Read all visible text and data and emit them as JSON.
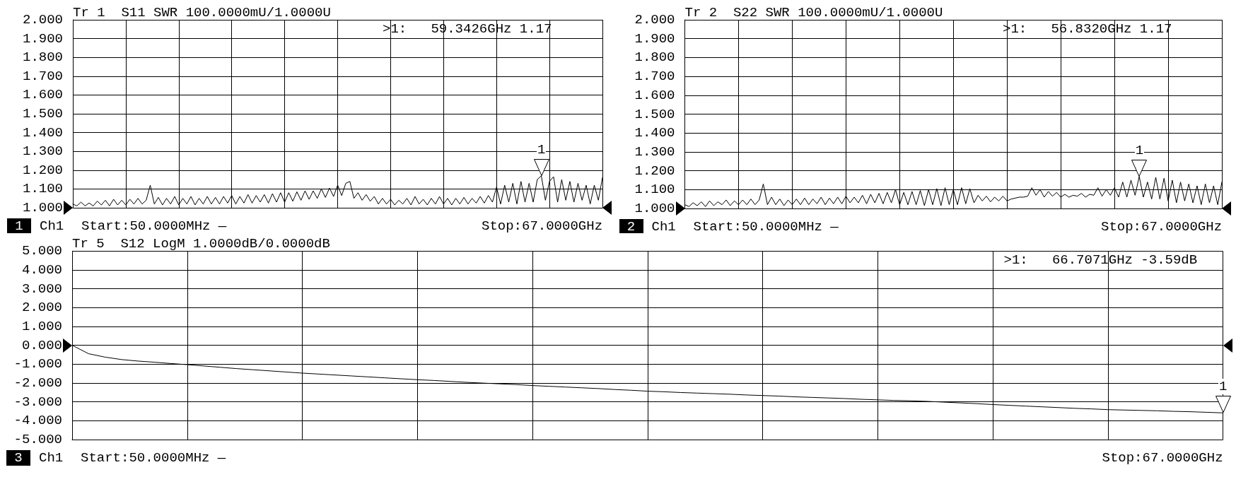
{
  "chart_data": [
    {
      "type": "line",
      "title": "Tr 1  S11 SWR 100.0000mU/1.0000U",
      "annotations": [
        "1",
        "Ch1",
        "Start:50.0000MHz —",
        "Stop:67.0000GHz",
        ">1:   59.3426GHz 1.17",
        {
          "text": "1",
          "y": 1.17
        }
      ],
      "categories": [
        null,
        null,
        null,
        null,
        null,
        null,
        null,
        null,
        null,
        null,
        null,
        null,
        null,
        null,
        null,
        null,
        null,
        null,
        null,
        null,
        null,
        null,
        null,
        null,
        null,
        null,
        null,
        null,
        null,
        null,
        null,
        null,
        null,
        null,
        null,
        null,
        null,
        null,
        null,
        null,
        null,
        null,
        null,
        null,
        null,
        null,
        null,
        null,
        null,
        null,
        null,
        null,
        null,
        null,
        null,
        null,
        null,
        null,
        null,
        null,
        null,
        null,
        null,
        null,
        null,
        null,
        null,
        null,
        null,
        null,
        null,
        null,
        null,
        null,
        null,
        null,
        null,
        null,
        null,
        null,
        null,
        null,
        null,
        null,
        null,
        null,
        null,
        null,
        null,
        null,
        null,
        null,
        null,
        null,
        null,
        null,
        null,
        null,
        null,
        null,
        null,
        null,
        null,
        null,
        null,
        null,
        null,
        null,
        null,
        null,
        null,
        null,
        null,
        null,
        null,
        null,
        null,
        null,
        null,
        null,
        null,
        null,
        null,
        null,
        null,
        null,
        null,
        null,
        null,
        null,
        null
      ],
      "values": [
        1.02,
        1.01,
        1.03,
        1.01,
        1.025,
        1.01,
        1.035,
        1.015,
        1.04,
        1.01,
        1.045,
        1.015,
        1.04,
        1.015,
        1.045,
        1.02,
        1.05,
        1.02,
        1.04,
        1.12,
        1.02,
        1.055,
        1.015,
        1.05,
        1.02,
        1.06,
        1.015,
        1.05,
        1.02,
        1.06,
        1.015,
        1.05,
        1.02,
        1.06,
        1.02,
        1.055,
        1.02,
        1.06,
        1.025,
        1.065,
        1.02,
        1.06,
        1.025,
        1.07,
        1.025,
        1.065,
        1.03,
        1.07,
        1.025,
        1.075,
        1.03,
        1.08,
        1.03,
        1.08,
        1.035,
        1.085,
        1.04,
        1.09,
        1.045,
        1.09,
        1.05,
        1.1,
        1.055,
        1.105,
        1.06,
        1.12,
        1.065,
        1.13,
        1.14,
        1.05,
        1.08,
        1.04,
        1.07,
        1.035,
        1.06,
        1.02,
        1.05,
        1.02,
        1.045,
        1.015,
        1.04,
        1.02,
        1.05,
        1.015,
        1.06,
        1.02,
        1.045,
        1.015,
        1.05,
        1.02,
        1.06,
        1.02,
        1.05,
        1.015,
        1.05,
        1.02,
        1.055,
        1.02,
        1.05,
        1.025,
        1.06,
        1.025,
        1.065,
        1.03,
        1.11,
        1.02,
        1.12,
        1.03,
        1.13,
        1.02,
        1.14,
        1.03,
        1.13,
        1.03,
        1.15,
        1.17,
        1.04,
        1.14,
        1.165,
        1.03,
        1.15,
        1.04,
        1.14,
        1.03,
        1.13,
        1.04,
        1.12,
        1.02,
        1.12,
        1.04,
        1.16
      ],
      "color": "#000000",
      "ylim": [
        1,
        2
      ],
      "yticks": [
        {
          "value": 1,
          "label": "1.000"
        },
        {
          "value": 1.1,
          "label": "1.100"
        },
        {
          "value": 1.2,
          "label": "1.200"
        },
        {
          "value": 1.3,
          "label": "1.300"
        },
        {
          "value": 1.4,
          "label": "1.400"
        },
        {
          "value": 1.5,
          "label": "1.500"
        },
        {
          "value": 1.6,
          "label": "1.600"
        },
        {
          "value": 1.7,
          "label": "1.700"
        },
        {
          "value": 1.8,
          "label": "1.800"
        },
        {
          "value": 1.9,
          "label": "1.900"
        },
        {
          "value": 2,
          "label": "2.000"
        }
      ],
      "grid": true,
      "tick_labels": "y"
    },
    {
      "type": "line",
      "title": "Tr 2  S22 SWR 100.0000mU/1.0000U",
      "annotations": [
        "2",
        "Ch1",
        "Start:50.0000MHz —",
        "Stop:67.0000GHz",
        ">1:   56.8320GHz 1.17",
        {
          "text": "1",
          "y": 1.17
        }
      ],
      "categories": [
        null,
        null,
        null,
        null,
        null,
        null,
        null,
        null,
        null,
        null,
        null,
        null,
        null,
        null,
        null,
        null,
        null,
        null,
        null,
        null,
        null,
        null,
        null,
        null,
        null,
        null,
        null,
        null,
        null,
        null,
        null,
        null,
        null,
        null,
        null,
        null,
        null,
        null,
        null,
        null,
        null,
        null,
        null,
        null,
        null,
        null,
        null,
        null,
        null,
        null,
        null,
        null,
        null,
        null,
        null,
        null,
        null,
        null,
        null,
        null,
        null,
        null,
        null,
        null,
        null,
        null,
        null,
        null,
        null,
        null,
        null,
        null,
        null,
        null,
        null,
        null,
        null,
        null,
        null,
        null,
        null,
        null,
        null,
        null,
        null,
        null,
        null,
        null,
        null,
        null,
        null,
        null,
        null,
        null,
        null,
        null,
        null,
        null,
        null,
        null,
        null,
        null,
        null,
        null,
        null,
        null,
        null,
        null,
        null,
        null,
        null,
        null,
        null,
        null,
        null,
        null,
        null,
        null,
        null,
        null,
        null,
        null,
        null,
        null,
        null,
        null,
        null,
        null,
        null,
        null,
        null
      ],
      "values": [
        1.02,
        1.01,
        1.03,
        1.015,
        1.035,
        1.01,
        1.04,
        1.015,
        1.035,
        1.02,
        1.045,
        1.015,
        1.04,
        1.02,
        1.045,
        1.02,
        1.05,
        1.02,
        1.045,
        1.13,
        1.02,
        1.06,
        1.02,
        1.05,
        1.015,
        1.045,
        1.02,
        1.05,
        1.02,
        1.055,
        1.02,
        1.05,
        1.025,
        1.06,
        1.02,
        1.055,
        1.025,
        1.06,
        1.025,
        1.065,
        1.03,
        1.06,
        1.03,
        1.07,
        1.025,
        1.075,
        1.03,
        1.08,
        1.025,
        1.085,
        1.03,
        1.1,
        1.02,
        1.085,
        1.02,
        1.09,
        1.02,
        1.095,
        1.015,
        1.1,
        1.02,
        1.105,
        1.015,
        1.11,
        1.02,
        1.1,
        1.02,
        1.11,
        1.025,
        1.105,
        1.03,
        1.07,
        1.04,
        1.065,
        1.035,
        1.06,
        1.04,
        1.065,
        1.04,
        1.05,
        1.055,
        1.06,
        1.06,
        1.065,
        1.11,
        1.07,
        1.1,
        1.06,
        1.09,
        1.065,
        1.085,
        1.06,
        1.075,
        1.06,
        1.07,
        1.065,
        1.08,
        1.06,
        1.075,
        1.07,
        1.11,
        1.065,
        1.1,
        1.07,
        1.11,
        1.06,
        1.14,
        1.06,
        1.15,
        1.07,
        1.17,
        1.06,
        1.14,
        1.05,
        1.165,
        1.05,
        1.16,
        1.04,
        1.15,
        1.03,
        1.14,
        1.04,
        1.13,
        1.03,
        1.12,
        1.02,
        1.13,
        1.03,
        1.12,
        1.02,
        1.14
      ],
      "color": "#000000",
      "ylim": [
        1,
        2
      ],
      "yticks": [
        {
          "value": 1,
          "label": "1.000"
        },
        {
          "value": 1.1,
          "label": "1.100"
        },
        {
          "value": 1.2,
          "label": "1.200"
        },
        {
          "value": 1.3,
          "label": "1.300"
        },
        {
          "value": 1.4,
          "label": "1.400"
        },
        {
          "value": 1.5,
          "label": "1.500"
        },
        {
          "value": 1.6,
          "label": "1.600"
        },
        {
          "value": 1.7,
          "label": "1.700"
        },
        {
          "value": 1.8,
          "label": "1.800"
        },
        {
          "value": 1.9,
          "label": "1.900"
        },
        {
          "value": 2,
          "label": "2.000"
        }
      ],
      "grid": true,
      "tick_labels": "y"
    },
    {
      "type": "line",
      "title": "Tr 5  S12 LogM 1.0000dB/0.0000dB",
      "annotations": [
        "3",
        "Ch1",
        "Start:50.0000MHz —",
        "Stop:67.0000GHz",
        ">1:   66.7071GHz -3.59dB",
        {
          "text": "1",
          "y": -3.59
        }
      ],
      "categories": [
        null,
        null,
        null,
        null,
        null,
        null,
        null,
        null,
        null,
        null,
        null,
        null,
        null,
        null,
        null,
        null,
        null,
        null,
        null,
        null,
        null,
        null,
        null,
        null,
        null,
        null,
        null,
        null,
        null,
        null,
        null,
        null,
        null,
        null,
        null,
        null,
        null,
        null,
        null,
        null,
        null,
        null,
        null,
        null,
        null,
        null,
        null,
        null,
        null,
        null,
        null,
        null,
        null,
        null,
        null,
        null,
        null,
        null,
        null,
        null,
        null,
        null,
        null,
        null,
        null,
        null,
        null,
        null,
        null,
        null,
        null
      ],
      "values": [
        0,
        -0.45,
        -0.63,
        -0.76,
        -0.84,
        -0.9,
        -0.97,
        -1.03,
        -1.1,
        -1.17,
        -1.24,
        -1.3,
        -1.36,
        -1.42,
        -1.48,
        -1.53,
        -1.58,
        -1.63,
        -1.68,
        -1.73,
        -1.78,
        -1.83,
        -1.87,
        -1.92,
        -1.97,
        -2.01,
        -2.05,
        -2.09,
        -2.14,
        -2.18,
        -2.22,
        -2.26,
        -2.3,
        -2.35,
        -2.39,
        -2.44,
        -2.47,
        -2.51,
        -2.54,
        -2.57,
        -2.6,
        -2.64,
        -2.67,
        -2.7,
        -2.74,
        -2.77,
        -2.8,
        -2.83,
        -2.87,
        -2.9,
        -2.93,
        -2.95,
        -2.98,
        -3.02,
        -3.06,
        -3.1,
        -3.15,
        -3.19,
        -3.23,
        -3.27,
        -3.31,
        -3.35,
        -3.38,
        -3.42,
        -3.44,
        -3.46,
        -3.48,
        -3.51,
        -3.53,
        -3.56,
        -3.59
      ],
      "color": "#000000",
      "ylim": [
        -5,
        5
      ],
      "yticks": [
        {
          "value": -5,
          "label": "-5.000"
        },
        {
          "value": -4,
          "label": "-4.000"
        },
        {
          "value": -3,
          "label": "-3.000"
        },
        {
          "value": -2,
          "label": "-2.000"
        },
        {
          "value": -1,
          "label": "-1.000"
        },
        {
          "value": 0,
          "label": "0.000"
        },
        {
          "value": 1,
          "label": "1.000"
        },
        {
          "value": 2,
          "label": "2.000"
        },
        {
          "value": 3,
          "label": "3.000"
        },
        {
          "value": 4,
          "label": "4.000"
        },
        {
          "value": 5,
          "label": "5.000"
        }
      ],
      "grid": true,
      "tick_labels": "y"
    }
  ]
}
